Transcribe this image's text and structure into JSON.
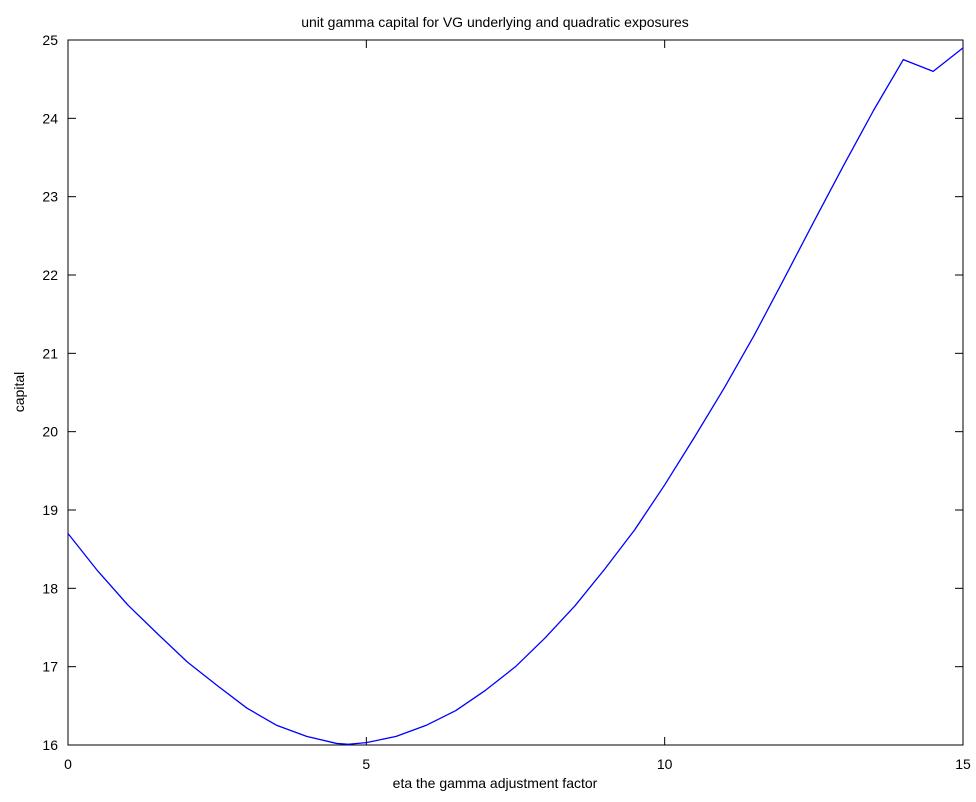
{
  "chart_data": {
    "type": "line",
    "title": "unit gamma capital for VG underlying and quadratic exposures",
    "xlabel": "eta the gamma adjustment factor",
    "ylabel": "capital",
    "xlim": [
      0,
      15
    ],
    "ylim": [
      16,
      25
    ],
    "xticks": [
      0,
      5,
      10,
      15
    ],
    "yticks": [
      16,
      17,
      18,
      19,
      20,
      21,
      22,
      23,
      24,
      25
    ],
    "grid": false,
    "series": [
      {
        "color": "#0000ff",
        "x": [
          0,
          0.5,
          1,
          1.5,
          2,
          2.5,
          3,
          3.5,
          4,
          4.5,
          4.7,
          5,
          5.5,
          6,
          6.5,
          7,
          7.5,
          8,
          8.5,
          9,
          9.5,
          10,
          10.5,
          11,
          11.5,
          12,
          12.5,
          13,
          13.5,
          14,
          14.5,
          15
        ],
        "y": [
          18.7,
          18.22,
          17.79,
          17.42,
          17.06,
          16.76,
          16.47,
          16.25,
          16.11,
          16.02,
          16.01,
          16.03,
          16.11,
          16.25,
          16.44,
          16.7,
          17.0,
          17.37,
          17.78,
          18.25,
          18.75,
          19.32,
          19.93,
          20.56,
          21.23,
          21.95,
          22.68,
          23.4,
          24.1,
          24.75,
          24.6,
          24.9
        ]
      }
    ]
  }
}
